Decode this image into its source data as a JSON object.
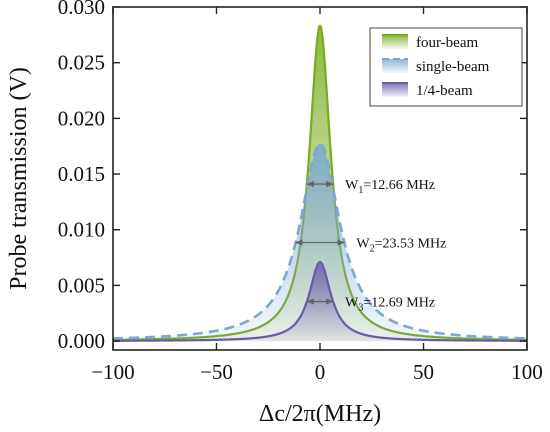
{
  "chart_data": {
    "type": "area",
    "xlabel": "Δc/2π(MHz)",
    "ylabel": "Probe transmission (V)",
    "xlim": [
      -100,
      100
    ],
    "ylim": [
      -0.0008,
      0.03
    ],
    "xticks": [
      -100,
      -50,
      0,
      50,
      100
    ],
    "xtick_labels": [
      "−100",
      "−50",
      "0",
      "50",
      "100"
    ],
    "yticks": [
      0.0,
      0.005,
      0.01,
      0.015,
      0.02,
      0.025,
      0.03
    ],
    "ytick_labels": [
      "0.000",
      "0.005",
      "0.010",
      "0.015",
      "0.020",
      "0.025",
      "0.030"
    ],
    "grid": false,
    "legend_position": "top-right",
    "series": [
      {
        "name": "four-beam",
        "shape": "lorentzian",
        "center": 0,
        "fwhm": 12.66,
        "peak": 0.0283,
        "color": "#7aab1f",
        "fill": "gradient",
        "line_style": "solid"
      },
      {
        "name": "single-beam",
        "shape": "lorentzian",
        "center": 0,
        "fwhm": 23.53,
        "peak": 0.0177,
        "color": "#7ba7d4",
        "fill": "gradient",
        "line_style": "dashed"
      },
      {
        "name": "1/4-beam",
        "shape": "lorentzian",
        "center": 0,
        "fwhm": 12.69,
        "peak": 0.0071,
        "color": "#6b5aa8",
        "fill": "gradient",
        "line_style": "solid"
      }
    ],
    "annotations": [
      {
        "text": "W",
        "sub": "1",
        "value": "=12.66 MHz",
        "x_from": -6.33,
        "x_to": 6.33,
        "y": 0.0141
      },
      {
        "text": "W",
        "sub": "2",
        "value": "=23.53 MHz",
        "x_from": -11.8,
        "x_to": 11.8,
        "y": 0.00885
      },
      {
        "text": "W",
        "sub": "3",
        "value": "=12.69 MHz",
        "x_from": -6.35,
        "x_to": 6.35,
        "y": 0.00355
      }
    ]
  }
}
